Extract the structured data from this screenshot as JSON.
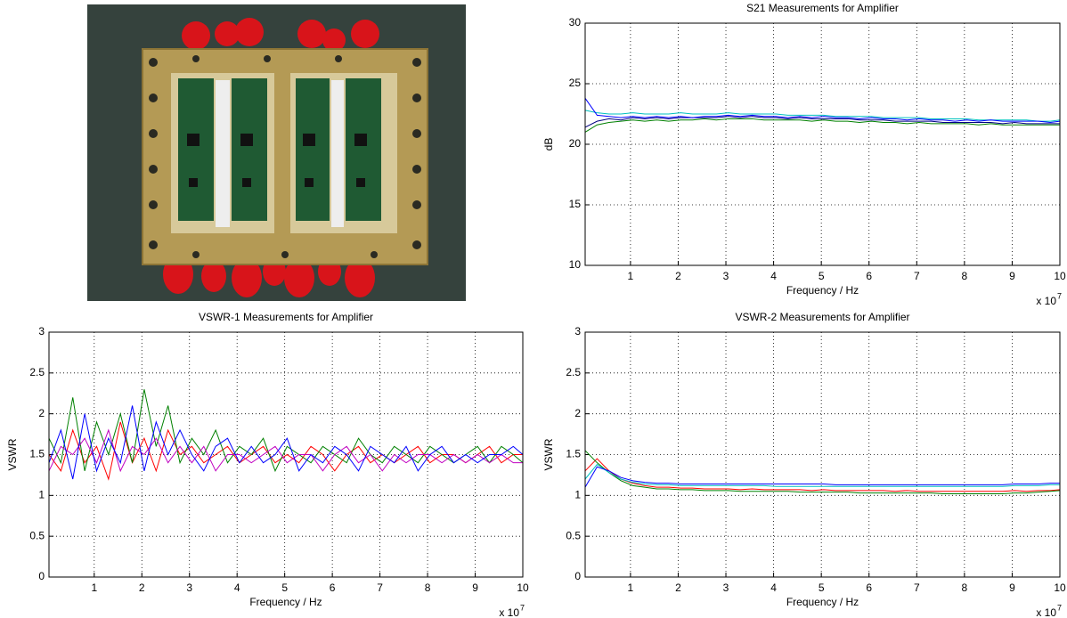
{
  "chart_data": [
    {
      "type": "line",
      "title": "S21 Measurements for Amplifier",
      "x_label": "Frequency / Hz",
      "y_label": "dB",
      "x_exponent_base": "x 10",
      "x_exponent": "7",
      "x": [
        0.05,
        0.3,
        0.55,
        0.8,
        1.05,
        1.3,
        1.55,
        1.8,
        2.05,
        2.3,
        2.55,
        2.8,
        3.05,
        3.3,
        3.55,
        3.8,
        4.05,
        4.3,
        4.55,
        4.8,
        5.05,
        5.3,
        5.55,
        5.8,
        6.05,
        6.3,
        6.55,
        6.8,
        7.05,
        7.3,
        7.55,
        7.8,
        8.05,
        8.3,
        8.55,
        8.8,
        9.05,
        9.3,
        9.55,
        9.8,
        10
      ],
      "series": [
        {
          "color": "#00c0c0",
          "values": [
            22.8,
            22.6,
            22.5,
            22.5,
            22.6,
            22.5,
            22.5,
            22.5,
            22.6,
            22.5,
            22.5,
            22.5,
            22.6,
            22.5,
            22.5,
            22.5,
            22.5,
            22.4,
            22.4,
            22.4,
            22.4,
            22.3,
            22.3,
            22.3,
            22.3,
            22.2,
            22.2,
            22.2,
            22.2,
            22.1,
            22.1,
            22.1,
            22.1,
            22.0,
            22.0,
            22.0,
            22.0,
            22.0,
            21.9,
            21.9,
            22.0
          ]
        },
        {
          "color": "#008000",
          "values": [
            21.0,
            21.6,
            21.8,
            21.9,
            22.0,
            21.9,
            22.0,
            21.9,
            22.0,
            22.0,
            22.1,
            22.0,
            22.1,
            22.1,
            22.1,
            22.0,
            22.0,
            22.0,
            22.0,
            21.9,
            22.0,
            21.9,
            21.9,
            21.8,
            21.9,
            21.8,
            21.8,
            21.7,
            21.8,
            21.7,
            21.7,
            21.7,
            21.7,
            21.6,
            21.7,
            21.6,
            21.6,
            21.6,
            21.6,
            21.6,
            21.6
          ]
        },
        {
          "color": "#000080",
          "values": [
            21.4,
            21.9,
            22.1,
            22.0,
            22.2,
            22.1,
            22.2,
            22.1,
            22.2,
            22.2,
            22.2,
            22.2,
            22.3,
            22.2,
            22.3,
            22.2,
            22.2,
            22.1,
            22.2,
            22.1,
            22.1,
            22.1,
            22.1,
            22.0,
            22.0,
            22.0,
            21.9,
            21.9,
            21.9,
            21.9,
            21.8,
            21.8,
            21.8,
            21.8,
            21.8,
            21.7,
            21.8,
            21.7,
            21.7,
            21.7,
            21.7
          ]
        },
        {
          "color": "#0000ff",
          "values": [
            23.8,
            22.4,
            22.3,
            22.2,
            22.3,
            22.2,
            22.3,
            22.2,
            22.3,
            22.2,
            22.3,
            22.3,
            22.4,
            22.3,
            22.4,
            22.3,
            22.3,
            22.2,
            22.3,
            22.2,
            22.3,
            22.2,
            22.2,
            22.1,
            22.2,
            22.1,
            22.1,
            22.0,
            22.1,
            22.0,
            22.0,
            21.9,
            22.0,
            21.9,
            22.0,
            21.9,
            21.9,
            21.9,
            21.9,
            21.8,
            21.9
          ]
        }
      ],
      "xlim": [
        0.05,
        10
      ],
      "ylim": [
        10,
        30
      ],
      "xticks": [
        1,
        2,
        3,
        4,
        5,
        6,
        7,
        8,
        9,
        10
      ],
      "yticks": [
        10,
        15,
        20,
        25,
        30
      ],
      "grid": true
    },
    {
      "type": "line",
      "title": "VSWR-1 Measurements for Amplifier",
      "x_label": "Frequency / Hz",
      "y_label": "VSWR",
      "x_exponent_base": "x 10",
      "x_exponent": "7",
      "x": [
        0.05,
        0.3,
        0.55,
        0.8,
        1.05,
        1.3,
        1.55,
        1.8,
        2.05,
        2.3,
        2.55,
        2.8,
        3.05,
        3.3,
        3.55,
        3.8,
        4.05,
        4.3,
        4.55,
        4.8,
        5.05,
        5.3,
        5.55,
        5.8,
        6.05,
        6.3,
        6.55,
        6.8,
        7.05,
        7.3,
        7.55,
        7.8,
        8.05,
        8.3,
        8.55,
        8.8,
        9.05,
        9.3,
        9.55,
        9.8,
        10
      ],
      "series": [
        {
          "color": "#ff0000",
          "values": [
            1.5,
            1.3,
            1.8,
            1.4,
            1.6,
            1.2,
            1.9,
            1.4,
            1.7,
            1.3,
            1.8,
            1.5,
            1.6,
            1.4,
            1.5,
            1.6,
            1.4,
            1.5,
            1.6,
            1.4,
            1.5,
            1.4,
            1.6,
            1.5,
            1.3,
            1.5,
            1.6,
            1.4,
            1.5,
            1.4,
            1.5,
            1.6,
            1.4,
            1.5,
            1.5,
            1.4,
            1.5,
            1.6,
            1.4,
            1.5,
            1.5
          ]
        },
        {
          "color": "#008000",
          "values": [
            1.7,
            1.4,
            2.2,
            1.3,
            1.9,
            1.5,
            2.0,
            1.4,
            2.3,
            1.6,
            2.1,
            1.4,
            1.7,
            1.5,
            1.8,
            1.4,
            1.6,
            1.5,
            1.7,
            1.3,
            1.6,
            1.5,
            1.4,
            1.6,
            1.5,
            1.4,
            1.7,
            1.5,
            1.4,
            1.6,
            1.5,
            1.4,
            1.6,
            1.5,
            1.4,
            1.5,
            1.6,
            1.4,
            1.6,
            1.5,
            1.4
          ]
        },
        {
          "color": "#c000c0",
          "values": [
            1.3,
            1.6,
            1.5,
            1.7,
            1.4,
            1.8,
            1.3,
            1.6,
            1.5,
            1.7,
            1.4,
            1.6,
            1.4,
            1.6,
            1.3,
            1.5,
            1.5,
            1.4,
            1.5,
            1.6,
            1.4,
            1.5,
            1.5,
            1.3,
            1.5,
            1.6,
            1.4,
            1.5,
            1.3,
            1.5,
            1.4,
            1.5,
            1.5,
            1.4,
            1.5,
            1.4,
            1.5,
            1.4,
            1.5,
            1.4,
            1.4
          ]
        },
        {
          "color": "#0000ff",
          "values": [
            1.4,
            1.8,
            1.2,
            2.0,
            1.3,
            1.7,
            1.4,
            2.1,
            1.3,
            1.9,
            1.5,
            1.8,
            1.5,
            1.3,
            1.6,
            1.7,
            1.4,
            1.6,
            1.4,
            1.5,
            1.7,
            1.3,
            1.5,
            1.4,
            1.6,
            1.5,
            1.3,
            1.6,
            1.5,
            1.4,
            1.6,
            1.3,
            1.5,
            1.6,
            1.4,
            1.5,
            1.4,
            1.5,
            1.5,
            1.6,
            1.5
          ]
        }
      ],
      "xlim": [
        0.05,
        10
      ],
      "ylim": [
        0,
        3
      ],
      "xticks": [
        1,
        2,
        3,
        4,
        5,
        6,
        7,
        8,
        9,
        10
      ],
      "yticks": [
        0,
        0.5,
        1,
        1.5,
        2,
        2.5,
        3
      ],
      "grid": true
    },
    {
      "type": "line",
      "title": "VSWR-2 Measurements for Amplifier",
      "x_label": "Frequency / Hz",
      "y_label": "VSWR",
      "x_exponent_base": "x 10",
      "x_exponent": "7",
      "x": [
        0.05,
        0.3,
        0.55,
        0.8,
        1.05,
        1.3,
        1.55,
        1.8,
        2.05,
        2.3,
        2.55,
        2.8,
        3.05,
        3.3,
        3.55,
        3.8,
        4.05,
        4.3,
        4.55,
        4.8,
        5.05,
        5.3,
        5.55,
        5.8,
        6.05,
        6.3,
        6.55,
        6.8,
        7.05,
        7.3,
        7.55,
        7.8,
        8.05,
        8.3,
        8.55,
        8.8,
        9.05,
        9.3,
        9.55,
        9.8,
        10
      ],
      "series": [
        {
          "color": "#ff0000",
          "values": [
            1.3,
            1.45,
            1.3,
            1.2,
            1.15,
            1.12,
            1.1,
            1.1,
            1.09,
            1.09,
            1.08,
            1.08,
            1.08,
            1.07,
            1.08,
            1.07,
            1.07,
            1.07,
            1.07,
            1.06,
            1.07,
            1.06,
            1.06,
            1.06,
            1.06,
            1.06,
            1.05,
            1.06,
            1.05,
            1.05,
            1.05,
            1.05,
            1.05,
            1.05,
            1.05,
            1.05,
            1.06,
            1.05,
            1.06,
            1.06,
            1.07
          ]
        },
        {
          "color": "#008000",
          "values": [
            1.55,
            1.4,
            1.28,
            1.18,
            1.12,
            1.1,
            1.08,
            1.08,
            1.07,
            1.07,
            1.06,
            1.06,
            1.06,
            1.05,
            1.05,
            1.05,
            1.05,
            1.05,
            1.04,
            1.04,
            1.04,
            1.04,
            1.04,
            1.03,
            1.03,
            1.03,
            1.03,
            1.03,
            1.03,
            1.03,
            1.02,
            1.02,
            1.02,
            1.02,
            1.02,
            1.02,
            1.03,
            1.03,
            1.04,
            1.05,
            1.06
          ]
        },
        {
          "color": "#00c0c0",
          "values": [
            1.2,
            1.38,
            1.28,
            1.2,
            1.16,
            1.14,
            1.13,
            1.13,
            1.12,
            1.12,
            1.12,
            1.12,
            1.12,
            1.12,
            1.12,
            1.12,
            1.11,
            1.11,
            1.11,
            1.11,
            1.11,
            1.11,
            1.11,
            1.11,
            1.11,
            1.11,
            1.11,
            1.11,
            1.11,
            1.11,
            1.11,
            1.11,
            1.11,
            1.11,
            1.11,
            1.11,
            1.12,
            1.12,
            1.12,
            1.13,
            1.13
          ]
        },
        {
          "color": "#0000ff",
          "values": [
            1.1,
            1.35,
            1.3,
            1.22,
            1.18,
            1.16,
            1.15,
            1.15,
            1.14,
            1.14,
            1.14,
            1.14,
            1.14,
            1.14,
            1.14,
            1.14,
            1.14,
            1.14,
            1.14,
            1.14,
            1.14,
            1.13,
            1.13,
            1.13,
            1.13,
            1.13,
            1.13,
            1.13,
            1.13,
            1.13,
            1.13,
            1.13,
            1.13,
            1.13,
            1.13,
            1.13,
            1.14,
            1.14,
            1.14,
            1.15,
            1.15
          ]
        }
      ],
      "xlim": [
        0.05,
        10
      ],
      "ylim": [
        0,
        3
      ],
      "xticks": [
        1,
        2,
        3,
        4,
        5,
        6,
        7,
        8,
        9,
        10
      ],
      "yticks": [
        0,
        0.5,
        1,
        1.5,
        2,
        2.5,
        3
      ],
      "grid": true
    }
  ]
}
